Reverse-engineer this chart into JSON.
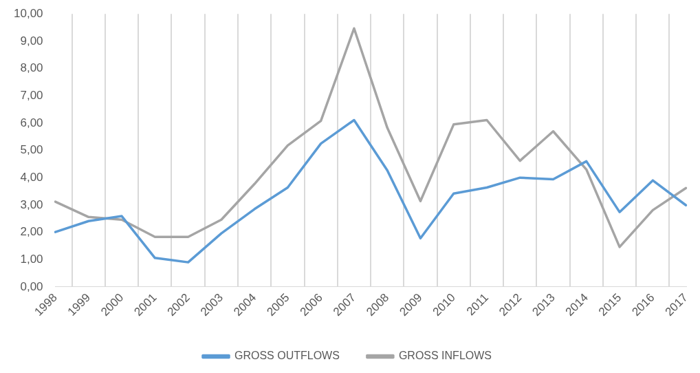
{
  "chart_data": {
    "type": "line",
    "categories": [
      "1998",
      "1999",
      "2000",
      "2001",
      "2002",
      "2003",
      "2004",
      "2005",
      "2006",
      "2007",
      "2008",
      "2009",
      "2010",
      "2011",
      "2012",
      "2013",
      "2014",
      "2015",
      "2016",
      "2017"
    ],
    "series": [
      {
        "name": "GROSS OUTFLOWS",
        "color": "#5b9bd5",
        "values": [
          2.01,
          2.41,
          2.59,
          1.06,
          0.9,
          1.96,
          2.85,
          3.64,
          5.25,
          6.11,
          4.27,
          1.78,
          3.42,
          3.64,
          4.0,
          3.94,
          4.6,
          2.74,
          3.9,
          2.99
        ]
      },
      {
        "name": "GROSS INFLOWS",
        "color": "#a5a5a5",
        "values": [
          3.12,
          2.56,
          2.46,
          1.83,
          1.83,
          2.46,
          3.77,
          5.18,
          6.08,
          9.47,
          5.83,
          3.14,
          5.95,
          6.11,
          4.62,
          5.7,
          4.3,
          1.46,
          2.81,
          3.62
        ]
      }
    ],
    "ylim": [
      0,
      10
    ],
    "yticks": [
      {
        "value": 0,
        "label": "0,00"
      },
      {
        "value": 1,
        "label": "1,00"
      },
      {
        "value": 2,
        "label": "2,00"
      },
      {
        "value": 3,
        "label": "3,00"
      },
      {
        "value": 4,
        "label": "4,00"
      },
      {
        "value": 5,
        "label": "5,00"
      },
      {
        "value": 6,
        "label": "6,00"
      },
      {
        "value": 7,
        "label": "7,00"
      },
      {
        "value": 8,
        "label": "8,00"
      },
      {
        "value": 9,
        "label": "9,00"
      },
      {
        "value": 10,
        "label": "10,00"
      }
    ],
    "grid": "x",
    "legend": "bottom",
    "marker": "none",
    "line_style": "solid"
  }
}
